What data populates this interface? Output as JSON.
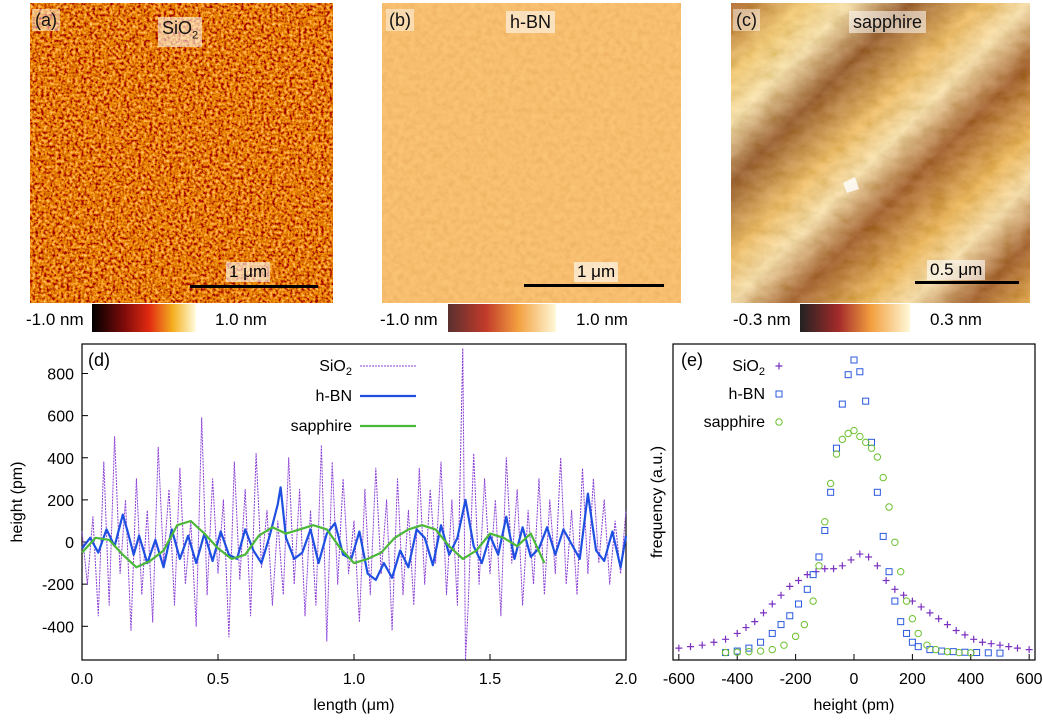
{
  "panels": [
    {
      "label": "(a)",
      "title_main": "SiO",
      "title_sub": "2",
      "scalebar": "1 μm",
      "cb_min": "-1.0 nm",
      "cb_max": "1.0 nm"
    },
    {
      "label": "(b)",
      "title_main": "h-BN",
      "title_sub": "",
      "scalebar": "1 μm",
      "cb_min": "-1.0 nm",
      "cb_max": "1.0 nm"
    },
    {
      "label": "(c)",
      "title_main": "sapphire",
      "title_sub": "",
      "scalebar": "0.5 μm",
      "cb_min": "-0.3 nm",
      "cb_max": "0.3 nm"
    }
  ],
  "chart_data": [
    {
      "type": "line",
      "panel_label": "(d)",
      "xlabel": "length (μm)",
      "ylabel": "height (pm)",
      "xlim": [
        0,
        2.0
      ],
      "ylim": [
        -560,
        940
      ],
      "xticks": [
        "0.0",
        "0.5",
        "1.0",
        "1.5",
        "2.0"
      ],
      "yticks": [
        "-400",
        "-200",
        "0",
        "200",
        "400",
        "600",
        "800"
      ],
      "legend_position": "top-center",
      "colors": {
        "SiO2": "#8a3fd6",
        "h-BN": "#1f4fe0",
        "sapphire": "#4cb83a"
      },
      "series": [
        {
          "name": "SiO",
          "name_sub": "2",
          "x": [
            0.0,
            0.02,
            0.04,
            0.06,
            0.08,
            0.1,
            0.12,
            0.14,
            0.16,
            0.18,
            0.2,
            0.22,
            0.24,
            0.26,
            0.28,
            0.3,
            0.32,
            0.34,
            0.36,
            0.38,
            0.4,
            0.42,
            0.44,
            0.46,
            0.48,
            0.5,
            0.52,
            0.54,
            0.56,
            0.58,
            0.6,
            0.62,
            0.64,
            0.66,
            0.68,
            0.7,
            0.72,
            0.74,
            0.76,
            0.78,
            0.8,
            0.82,
            0.84,
            0.86,
            0.88,
            0.9,
            0.92,
            0.94,
            0.96,
            0.98,
            1.0,
            1.02,
            1.04,
            1.06,
            1.08,
            1.1,
            1.12,
            1.14,
            1.16,
            1.18,
            1.2,
            1.22,
            1.24,
            1.26,
            1.28,
            1.3,
            1.32,
            1.34,
            1.36,
            1.38,
            1.4,
            1.41,
            1.42,
            1.44,
            1.46,
            1.48,
            1.5,
            1.52,
            1.54,
            1.56,
            1.58,
            1.6,
            1.62,
            1.64,
            1.66,
            1.68,
            1.7,
            1.72,
            1.74,
            1.76,
            1.78,
            1.8,
            1.82,
            1.84,
            1.86,
            1.88,
            1.9,
            1.92,
            1.94,
            1.96,
            1.98,
            2.0
          ],
          "y": [
            50,
            -200,
            120,
            -350,
            380,
            -300,
            500,
            -150,
            200,
            -420,
            300,
            -250,
            150,
            -380,
            450,
            -100,
            250,
            -300,
            350,
            -200,
            100,
            -400,
            590,
            -250,
            300,
            -150,
            200,
            -450,
            380,
            -180,
            250,
            -350,
            420,
            -120,
            150,
            -300,
            100,
            -250,
            400,
            -200,
            250,
            -350,
            150,
            -300,
            460,
            -470,
            380,
            -200,
            300,
            -150,
            100,
            -380,
            250,
            -250,
            350,
            -150,
            200,
            -420,
            300,
            -250,
            150,
            -300,
            350,
            -200,
            250,
            -100,
            380,
            -250,
            200,
            -300,
            920,
            -560,
            -300,
            420,
            -200,
            300,
            -150,
            200,
            -350,
            400,
            -100,
            250,
            -300,
            150,
            -200,
            300,
            -250,
            200,
            -150,
            400,
            -200,
            150,
            -250,
            350,
            -150,
            300,
            -100,
            200,
            -200,
            100,
            -150,
            150
          ]
        },
        {
          "name": "h-BN",
          "x": [
            0.0,
            0.03,
            0.06,
            0.09,
            0.12,
            0.15,
            0.17,
            0.19,
            0.21,
            0.24,
            0.27,
            0.3,
            0.33,
            0.36,
            0.39,
            0.42,
            0.45,
            0.48,
            0.51,
            0.54,
            0.57,
            0.6,
            0.63,
            0.66,
            0.69,
            0.72,
            0.73,
            0.75,
            0.78,
            0.81,
            0.84,
            0.87,
            0.9,
            0.93,
            0.96,
            0.99,
            1.02,
            1.05,
            1.08,
            1.11,
            1.14,
            1.17,
            1.2,
            1.23,
            1.26,
            1.29,
            1.32,
            1.35,
            1.38,
            1.41,
            1.44,
            1.47,
            1.5,
            1.53,
            1.56,
            1.59,
            1.62,
            1.65,
            1.68,
            1.71,
            1.74,
            1.77,
            1.8,
            1.83,
            1.86,
            1.89,
            1.92,
            1.95,
            1.98,
            2.0
          ],
          "y": [
            -30,
            20,
            -50,
            60,
            -20,
            130,
            40,
            -60,
            30,
            -100,
            10,
            -120,
            60,
            -80,
            30,
            -100,
            40,
            -90,
            50,
            -60,
            -80,
            60,
            -40,
            -100,
            30,
            180,
            260,
            20,
            -80,
            -50,
            60,
            -100,
            40,
            90,
            -60,
            -80,
            50,
            -150,
            -180,
            -100,
            -170,
            -40,
            -120,
            60,
            20,
            -110,
            80,
            -60,
            20,
            200,
            -20,
            -100,
            30,
            -60,
            120,
            -80,
            70,
            -70,
            -30,
            70,
            -60,
            60,
            -10,
            -80,
            230,
            -40,
            -90,
            50,
            -120,
            30
          ]
        },
        {
          "name": "sapphire",
          "x": [
            0.0,
            0.05,
            0.1,
            0.15,
            0.2,
            0.25,
            0.3,
            0.35,
            0.4,
            0.45,
            0.5,
            0.55,
            0.6,
            0.65,
            0.7,
            0.75,
            0.8,
            0.85,
            0.9,
            0.95,
            1.0,
            1.05,
            1.1,
            1.15,
            1.2,
            1.25,
            1.3,
            1.35,
            1.4,
            1.45,
            1.5,
            1.55,
            1.6,
            1.65,
            1.7
          ],
          "y": [
            -50,
            20,
            10,
            -60,
            -120,
            -90,
            -40,
            80,
            100,
            40,
            -30,
            -80,
            -60,
            30,
            70,
            40,
            60,
            80,
            60,
            -30,
            -100,
            -80,
            -50,
            20,
            60,
            80,
            60,
            -20,
            -80,
            -40,
            40,
            20,
            -20,
            40,
            -100
          ]
        }
      ]
    },
    {
      "type": "scatter",
      "panel_label": "(e)",
      "xlabel": "height (pm)",
      "ylabel": "frequency (a.u.)",
      "xlim": [
        -620,
        620
      ],
      "ylim": [
        0,
        1
      ],
      "xticks": [
        "-600",
        "-400",
        "-200",
        "0",
        "200",
        "400",
        "600"
      ],
      "legend_position": "top-left",
      "series": [
        {
          "name": "SiO",
          "name_sub": "2",
          "marker": "+",
          "color": "#7a2fc0",
          "x": [
            -600,
            -560,
            -520,
            -480,
            -440,
            -400,
            -370,
            -340,
            -310,
            -280,
            -250,
            -220,
            -190,
            -160,
            -130,
            -100,
            -70,
            -40,
            -10,
            20,
            50,
            80,
            110,
            140,
            170,
            200,
            230,
            260,
            290,
            320,
            350,
            380,
            410,
            440,
            470,
            500,
            530,
            560,
            600
          ],
          "y": [
            0.02,
            0.025,
            0.03,
            0.04,
            0.05,
            0.07,
            0.09,
            0.11,
            0.14,
            0.17,
            0.2,
            0.23,
            0.25,
            0.27,
            0.28,
            0.29,
            0.29,
            0.3,
            0.32,
            0.34,
            0.33,
            0.3,
            0.25,
            0.22,
            0.2,
            0.18,
            0.16,
            0.14,
            0.12,
            0.1,
            0.08,
            0.065,
            0.05,
            0.04,
            0.035,
            0.03,
            0.025,
            0.02,
            0.015
          ]
        },
        {
          "name": "h-BN",
          "marker": "square",
          "color": "#2a58e0",
          "x": [
            -440,
            -400,
            -360,
            -320,
            -280,
            -250,
            -220,
            -190,
            -160,
            -140,
            -120,
            -100,
            -80,
            -60,
            -40,
            -20,
            0,
            20,
            40,
            60,
            80,
            100,
            120,
            140,
            160,
            180,
            200,
            220,
            260,
            300,
            340,
            380,
            420,
            460,
            500
          ],
          "y": [
            0.005,
            0.01,
            0.02,
            0.04,
            0.07,
            0.1,
            0.13,
            0.17,
            0.22,
            0.27,
            0.33,
            0.42,
            0.55,
            0.7,
            0.85,
            0.95,
            1.0,
            0.96,
            0.86,
            0.72,
            0.55,
            0.4,
            0.28,
            0.18,
            0.11,
            0.07,
            0.04,
            0.025,
            0.015,
            0.01,
            0.008,
            0.006,
            0.005,
            0.004,
            0.003
          ]
        },
        {
          "name": "sapphire",
          "marker": "circle",
          "color": "#6cc12e",
          "x": [
            -440,
            -400,
            -360,
            -320,
            -280,
            -240,
            -200,
            -170,
            -140,
            -120,
            -100,
            -80,
            -60,
            -40,
            -20,
            0,
            20,
            40,
            60,
            80,
            100,
            120,
            140,
            160,
            180,
            200,
            220,
            250,
            280,
            320,
            360,
            400
          ],
          "y": [
            0.005,
            0.006,
            0.008,
            0.01,
            0.015,
            0.03,
            0.06,
            0.1,
            0.18,
            0.3,
            0.45,
            0.58,
            0.68,
            0.73,
            0.75,
            0.76,
            0.74,
            0.72,
            0.7,
            0.67,
            0.6,
            0.5,
            0.38,
            0.28,
            0.18,
            0.12,
            0.07,
            0.03,
            0.015,
            0.008,
            0.005,
            0.004
          ]
        }
      ]
    }
  ]
}
